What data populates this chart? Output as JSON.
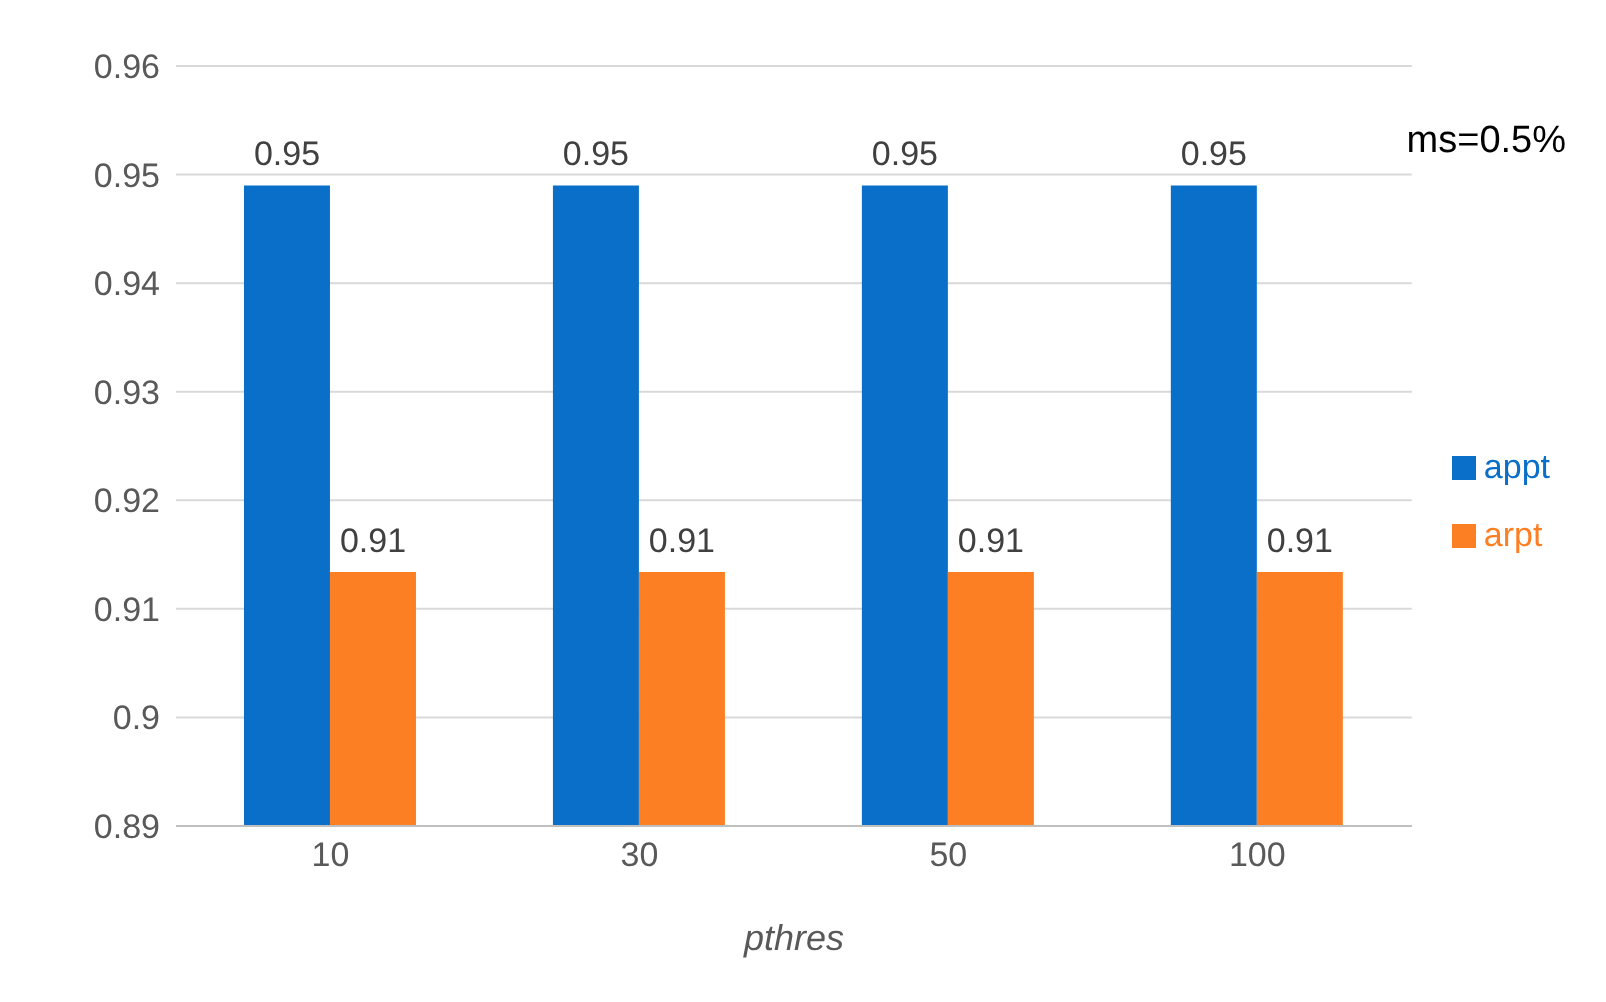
{
  "chart_data": {
    "type": "bar",
    "categories": [
      "10",
      "30",
      "50",
      "100"
    ],
    "xlabel": "pthres",
    "series": [
      {
        "name": "appt",
        "color": "#0a6fc9",
        "values": [
          0.949,
          0.949,
          0.949,
          0.949
        ],
        "value_labels": [
          "0.95",
          "0.95",
          "0.95",
          "0.95"
        ]
      },
      {
        "name": "arpt",
        "color": "#fd7f23",
        "values": [
          0.9134,
          0.9134,
          0.9134,
          0.9134
        ],
        "value_labels": [
          "0.91",
          "0.91",
          "0.91",
          "0.91"
        ]
      }
    ],
    "ylim": [
      0.89,
      0.96
    ],
    "yticks": [
      0.89,
      0.9,
      0.91,
      0.92,
      0.93,
      0.94,
      0.95,
      0.96
    ],
    "grid": "y",
    "legend": "right",
    "annotations": [
      "ms=0.5%"
    ]
  }
}
